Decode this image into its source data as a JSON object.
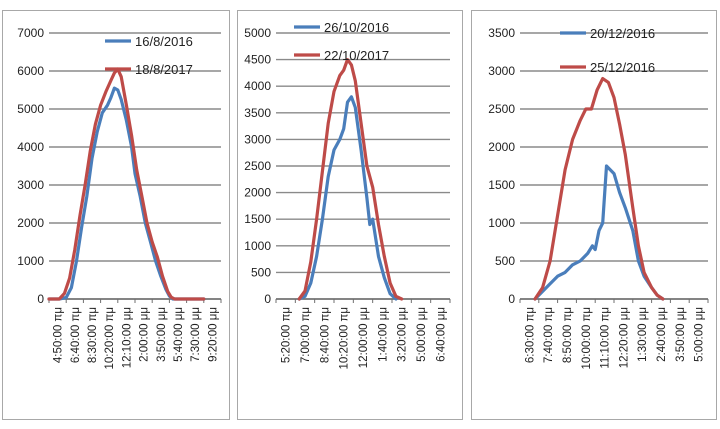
{
  "chart_data": [
    {
      "type": "line",
      "ylim": [
        0,
        7000
      ],
      "yticks": [
        0,
        1000,
        2000,
        3000,
        4000,
        5000,
        6000,
        7000
      ],
      "x_ticks": [
        "4:50:00 πμ",
        "6:40:00 πμ",
        "8:30:00 πμ",
        "10:20:00 πμ",
        "12:10:00 μμ",
        "2:00:00 μμ",
        "3:50:00 μμ",
        "5:40:00 μμ",
        "7:30:00 μμ",
        "9:20:00 μμ"
      ],
      "grid": true,
      "legend": "top-right",
      "series": [
        {
          "name": "16/8/2016",
          "color": "#4a7ebb",
          "values": [
            [
              0,
              0
            ],
            [
              0.6,
              0
            ],
            [
              1,
              40
            ],
            [
              1.3,
              300
            ],
            [
              1.6,
              1000
            ],
            [
              1.9,
              1900
            ],
            [
              2.2,
              2700
            ],
            [
              2.5,
              3700
            ],
            [
              2.8,
              4400
            ],
            [
              3.1,
              4900
            ],
            [
              3.4,
              5100
            ],
            [
              3.6,
              5300
            ],
            [
              3.8,
              5550
            ],
            [
              4.0,
              5500
            ],
            [
              4.2,
              5250
            ],
            [
              4.5,
              4700
            ],
            [
              4.8,
              4000
            ],
            [
              5.0,
              3300
            ],
            [
              5.3,
              2700
            ],
            [
              5.6,
              2000
            ],
            [
              5.9,
              1500
            ],
            [
              6.2,
              1000
            ],
            [
              6.5,
              600
            ],
            [
              6.8,
              250
            ],
            [
              7.0,
              80
            ],
            [
              7.2,
              0
            ],
            [
              9,
              0
            ]
          ]
        },
        {
          "name": "18/8/2017",
          "color": "#be4b48",
          "values": [
            [
              0,
              0
            ],
            [
              0.6,
              0
            ],
            [
              0.9,
              150
            ],
            [
              1.2,
              550
            ],
            [
              1.5,
              1300
            ],
            [
              1.8,
              2200
            ],
            [
              2.1,
              3000
            ],
            [
              2.4,
              3900
            ],
            [
              2.7,
              4600
            ],
            [
              3.0,
              5100
            ],
            [
              3.3,
              5450
            ],
            [
              3.6,
              5750
            ],
            [
              3.8,
              5950
            ],
            [
              4.0,
              6050
            ],
            [
              4.2,
              5850
            ],
            [
              4.5,
              5100
            ],
            [
              4.8,
              4300
            ],
            [
              5.1,
              3400
            ],
            [
              5.4,
              2700
            ],
            [
              5.7,
              2000
            ],
            [
              6.0,
              1500
            ],
            [
              6.3,
              1100
            ],
            [
              6.6,
              600
            ],
            [
              6.9,
              200
            ],
            [
              7.1,
              50
            ],
            [
              7.3,
              0
            ],
            [
              9,
              0
            ]
          ]
        }
      ]
    },
    {
      "type": "line",
      "ylim": [
        0,
        5000
      ],
      "yticks": [
        0,
        500,
        1000,
        1500,
        2000,
        2500,
        3000,
        3500,
        4000,
        4500,
        5000
      ],
      "x_ticks": [
        "5:20:00 πμ",
        "7:00:00 πμ",
        "8:40:00 πμ",
        "10:20:00 πμ",
        "12:00:00 μμ",
        "1:40:00 μμ",
        "3:20:00 μμ",
        "5:00:00 μμ",
        "6:40:00 μμ"
      ],
      "grid": true,
      "legend": "top-right",
      "series": [
        {
          "name": "26/10/2016",
          "color": "#4a7ebb",
          "values": [
            [
              1.2,
              0
            ],
            [
              1.5,
              50
            ],
            [
              1.8,
              300
            ],
            [
              2.1,
              800
            ],
            [
              2.4,
              1500
            ],
            [
              2.7,
              2300
            ],
            [
              3.0,
              2800
            ],
            [
              3.3,
              3000
            ],
            [
              3.5,
              3200
            ],
            [
              3.7,
              3700
            ],
            [
              3.9,
              3800
            ],
            [
              4.1,
              3600
            ],
            [
              4.4,
              2800
            ],
            [
              4.7,
              1900
            ],
            [
              4.85,
              1400
            ],
            [
              5.0,
              1500
            ],
            [
              5.3,
              800
            ],
            [
              5.6,
              400
            ],
            [
              5.9,
              100
            ],
            [
              6.2,
              0
            ]
          ]
        },
        {
          "name": "22/10/2017",
          "color": "#be4b48",
          "values": [
            [
              1.2,
              0
            ],
            [
              1.5,
              150
            ],
            [
              1.8,
              700
            ],
            [
              2.1,
              1500
            ],
            [
              2.4,
              2400
            ],
            [
              2.7,
              3300
            ],
            [
              3.0,
              3900
            ],
            [
              3.3,
              4200
            ],
            [
              3.5,
              4300
            ],
            [
              3.7,
              4500
            ],
            [
              3.9,
              4400
            ],
            [
              4.1,
              4100
            ],
            [
              4.4,
              3300
            ],
            [
              4.7,
              2500
            ],
            [
              5.0,
              2100
            ],
            [
              5.3,
              1400
            ],
            [
              5.6,
              800
            ],
            [
              5.9,
              300
            ],
            [
              6.2,
              50
            ],
            [
              6.5,
              0
            ]
          ]
        }
      ]
    },
    {
      "type": "line",
      "ylim": [
        0,
        3500
      ],
      "yticks": [
        0,
        500,
        1000,
        1500,
        2000,
        2500,
        3000,
        3500
      ],
      "x_ticks": [
        "6:30:00 πμ",
        "7:40:00 πμ",
        "8:50:00 πμ",
        "10:00:00 πμ",
        "11:10:00 πμ",
        "12:20:00 μμ",
        "1:30:00 μμ",
        "2:40:00 μμ",
        "3:50:00 μμ",
        "5:00:00 μμ"
      ],
      "grid": true,
      "legend": "top-right",
      "series": [
        {
          "name": "20/12/2016",
          "color": "#4a7ebb",
          "values": [
            [
              0.8,
              0
            ],
            [
              1.2,
              100
            ],
            [
              1.6,
              200
            ],
            [
              2.0,
              300
            ],
            [
              2.4,
              350
            ],
            [
              2.8,
              450
            ],
            [
              3.2,
              500
            ],
            [
              3.6,
              600
            ],
            [
              3.85,
              700
            ],
            [
              4.0,
              650
            ],
            [
              4.2,
              900
            ],
            [
              4.4,
              1000
            ],
            [
              4.6,
              1750
            ],
            [
              4.8,
              1700
            ],
            [
              5.0,
              1650
            ],
            [
              5.3,
              1400
            ],
            [
              5.6,
              1200
            ],
            [
              6.0,
              900
            ],
            [
              6.3,
              500
            ],
            [
              6.6,
              300
            ],
            [
              7.0,
              150
            ],
            [
              7.3,
              50
            ],
            [
              7.6,
              0
            ]
          ]
        },
        {
          "name": "25/12/2016",
          "color": "#be4b48",
          "values": [
            [
              0.8,
              0
            ],
            [
              1.2,
              150
            ],
            [
              1.6,
              500
            ],
            [
              2.0,
              1100
            ],
            [
              2.4,
              1700
            ],
            [
              2.8,
              2100
            ],
            [
              3.2,
              2350
            ],
            [
              3.5,
              2500
            ],
            [
              3.8,
              2500
            ],
            [
              4.1,
              2750
            ],
            [
              4.4,
              2900
            ],
            [
              4.7,
              2850
            ],
            [
              5.0,
              2650
            ],
            [
              5.3,
              2300
            ],
            [
              5.6,
              1900
            ],
            [
              6.0,
              1200
            ],
            [
              6.3,
              700
            ],
            [
              6.6,
              350
            ],
            [
              7.0,
              150
            ],
            [
              7.3,
              50
            ],
            [
              7.6,
              0
            ]
          ]
        }
      ]
    }
  ]
}
